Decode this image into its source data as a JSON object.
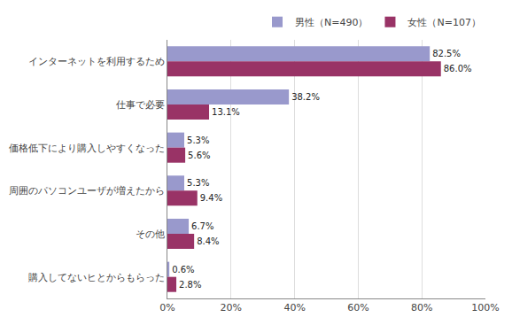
{
  "chart_data": {
    "type": "bar",
    "orientation": "horizontal",
    "categories": [
      "インターネットを利用するため",
      "仕事で必要",
      "価格低下により購入しやすくなった",
      "周囲のパソコンユーザが増えたから",
      "その他",
      "購入してないヒとからもらった"
    ],
    "series": [
      {
        "name": "男性（N=490）",
        "color": "#9999cc",
        "values": [
          82.5,
          38.2,
          5.3,
          5.3,
          6.7,
          0.6
        ],
        "value_labels": [
          "82.5%",
          "38.2%",
          "5.3%",
          "5.3%",
          "6.7%",
          "0.6%"
        ]
      },
      {
        "name": "女性（N=107）",
        "color": "#993366",
        "values": [
          86.0,
          13.1,
          5.6,
          9.4,
          8.4,
          2.8
        ],
        "value_labels": [
          "86.0%",
          "13.1%",
          "5.6%",
          "9.4%",
          "8.4%",
          "2.8%"
        ]
      }
    ],
    "xlim": [
      0,
      100
    ],
    "xticks": [
      {
        "value": 0,
        "label": "0%"
      },
      {
        "value": 20,
        "label": "20%"
      },
      {
        "value": 40,
        "label": "40%"
      },
      {
        "value": 60,
        "label": "60%"
      },
      {
        "value": 80,
        "label": "80%"
      },
      {
        "value": 100,
        "label": "100%"
      }
    ],
    "grid": true,
    "legend": "upper right",
    "data_labels": true
  }
}
